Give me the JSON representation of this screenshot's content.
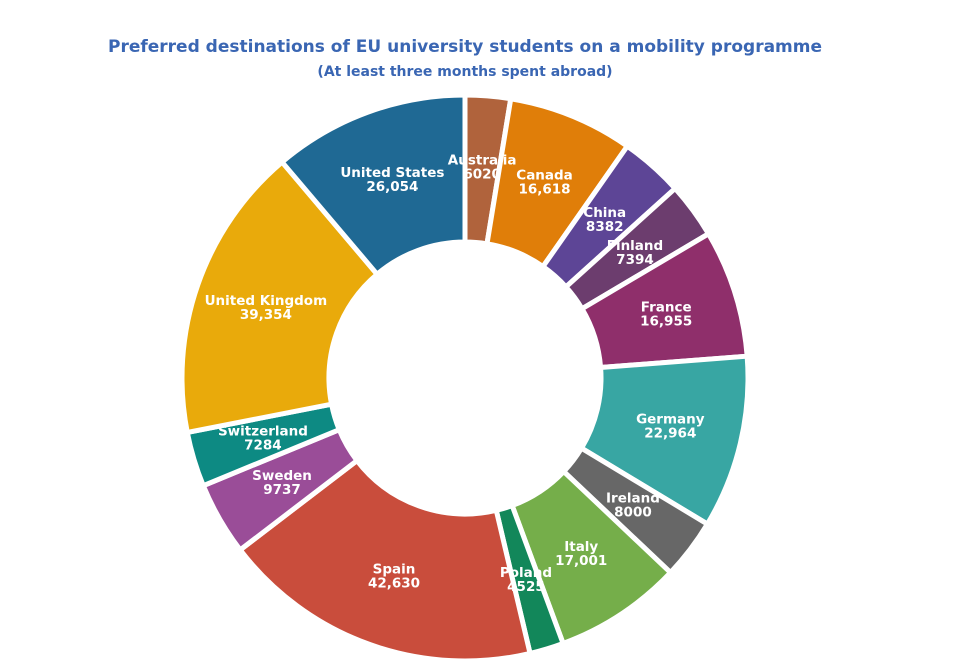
{
  "title": "Preferred destinations of EU university students on a mobility programme",
  "subtitle": "(At least three months spent abroad)",
  "chart_data": {
    "type": "pie",
    "donut": true,
    "title": "Preferred destinations of EU university students on a mobility programme",
    "subtitle": "(At least three months spent abroad)",
    "legend": "none",
    "slices": [
      {
        "label": "Australia",
        "value": 6020,
        "value_label": "6020",
        "color": "#b0633c"
      },
      {
        "label": "Canada",
        "value": 16618,
        "value_label": "16,618",
        "color": "#e07e09"
      },
      {
        "label": "China",
        "value": 8382,
        "value_label": "8382",
        "color": "#5d4596"
      },
      {
        "label": "Finland",
        "value": 7394,
        "value_label": "7394",
        "color": "#6c3d6e"
      },
      {
        "label": "France",
        "value": 16955,
        "value_label": "16,955",
        "color": "#8f2f6b"
      },
      {
        "label": "Germany",
        "value": 22964,
        "value_label": "22,964",
        "color": "#38a6a3"
      },
      {
        "label": "Ireland",
        "value": 8000,
        "value_label": "8000",
        "color": "#676767"
      },
      {
        "label": "Italy",
        "value": 17001,
        "value_label": "17,001",
        "color": "#75ae4a"
      },
      {
        "label": "Poland",
        "value": 4525,
        "value_label": "4525",
        "color": "#12875a"
      },
      {
        "label": "Spain",
        "value": 42630,
        "value_label": "42,630",
        "color": "#c94d3c"
      },
      {
        "label": "Sweden",
        "value": 9737,
        "value_label": "9737",
        "color": "#9a4d98"
      },
      {
        "label": "Switzerland",
        "value": 7284,
        "value_label": "7284",
        "color": "#0d8a83"
      },
      {
        "label": "United Kingdom",
        "value": 39354,
        "value_label": "39,354",
        "color": "#e9aa0b"
      },
      {
        "label": "United States",
        "value": 26054,
        "value_label": "26,054",
        "color": "#1f6994"
      }
    ]
  }
}
